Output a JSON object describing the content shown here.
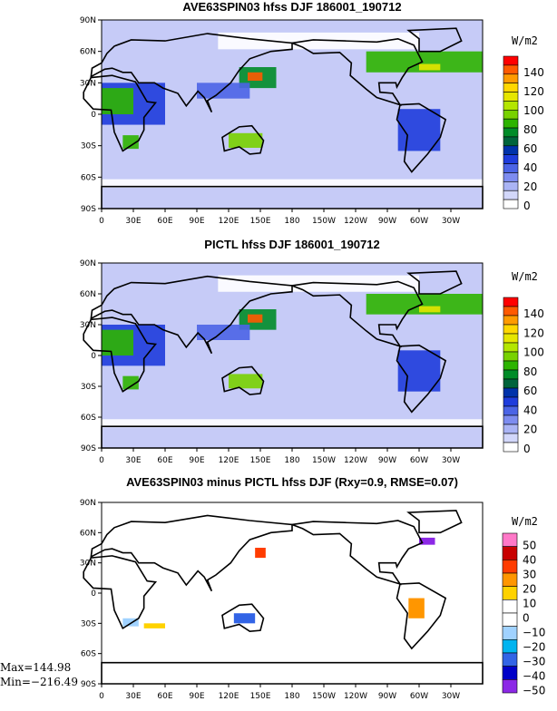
{
  "panels": [
    {
      "title": "AVE63SPIN03 hfss DJF 186001_190712",
      "units": "W/m2",
      "legend_labels": [
        "140",
        "120",
        "100",
        "80",
        "60",
        "40",
        "20",
        "0"
      ],
      "legend_colors": [
        "#ff0000",
        "#ff5a00",
        "#ff9b00",
        "#ffd700",
        "#e6e600",
        "#b4e600",
        "#78d200",
        "#2db400",
        "#008c28",
        "#00643c",
        "#0032aa",
        "#1e3cdc",
        "#4b64e6",
        "#7d8cf0",
        "#aab4f5",
        "#d2d7fa",
        "#ffffff"
      ],
      "type": "mean"
    },
    {
      "title": "PICTL hfss DJF 186001_190712",
      "units": "W/m2",
      "legend_labels": [
        "140",
        "120",
        "100",
        "80",
        "60",
        "40",
        "20",
        "0"
      ],
      "legend_colors": [
        "#ff0000",
        "#ff5a00",
        "#ff9b00",
        "#ffd700",
        "#e6e600",
        "#b4e600",
        "#78d200",
        "#2db400",
        "#008c28",
        "#00643c",
        "#0032aa",
        "#1e3cdc",
        "#4b64e6",
        "#7d8cf0",
        "#aab4f5",
        "#d2d7fa",
        "#ffffff"
      ],
      "type": "mean"
    },
    {
      "title": "AVE63SPIN03 minus PICTL hfss DJF (Rxy=0.9, RMSE=0.07)",
      "units": "W/m2",
      "legend_labels": [
        "50",
        "40",
        "30",
        "20",
        "10",
        "0",
        "−10",
        "−20",
        "−30",
        "−40",
        "−50"
      ],
      "legend_colors": [
        "#ff78c8",
        "#c80000",
        "#ff3c00",
        "#ff9600",
        "#ffd200",
        "#ffffff",
        "#ffffff",
        "#a0d2ff",
        "#00b4f0",
        "#3264e6",
        "#0000c8",
        "#8c28e6"
      ],
      "type": "diff"
    }
  ],
  "lat_labels": [
    "90N",
    "60N",
    "30N",
    "0",
    "30S",
    "60S",
    "90S"
  ],
  "lon_labels": [
    "0",
    "30E",
    "60E",
    "90E",
    "120E",
    "150E",
    "180",
    "150W",
    "120W",
    "90W",
    "60W",
    "30W"
  ],
  "stats": {
    "max": "Max=144.98",
    "min": "Min=−216.49"
  }
}
